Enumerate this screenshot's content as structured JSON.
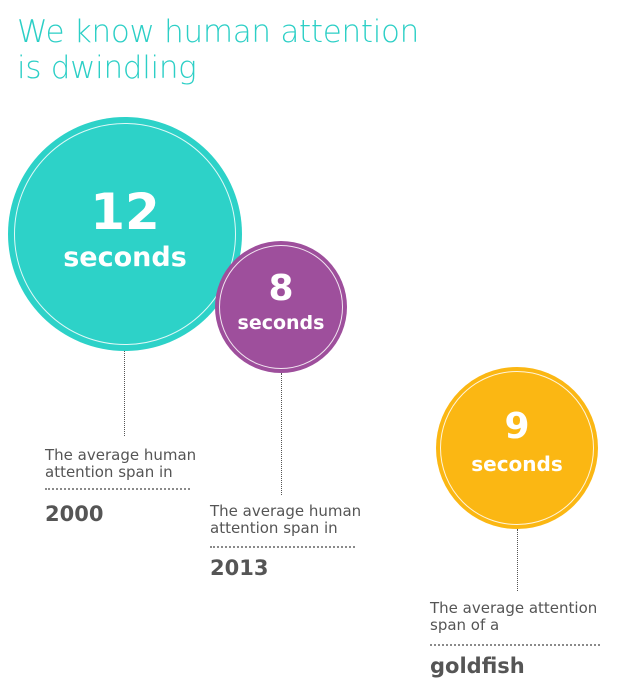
{
  "title": {
    "line1": "We know human attention",
    "line2": "is dwindling"
  },
  "colors": {
    "title": "#2ccfc6",
    "circle_2000": "#2dd2c8",
    "circle_2013": "#9e4f9c",
    "circle_goldfish": "#fbb713",
    "text": "#555555"
  },
  "stats": [
    {
      "value": "12",
      "unit": "seconds",
      "caption_line1": "The average human",
      "caption_line2": "attention span in",
      "subject": "2000"
    },
    {
      "value": "8",
      "unit": "seconds",
      "caption_line1": "The average human",
      "caption_line2": "attention span in",
      "subject": "2013"
    },
    {
      "value": "9",
      "unit": "seconds",
      "caption_line1": "The average attention",
      "caption_line2": "span of a",
      "subject": "goldfish"
    }
  ]
}
